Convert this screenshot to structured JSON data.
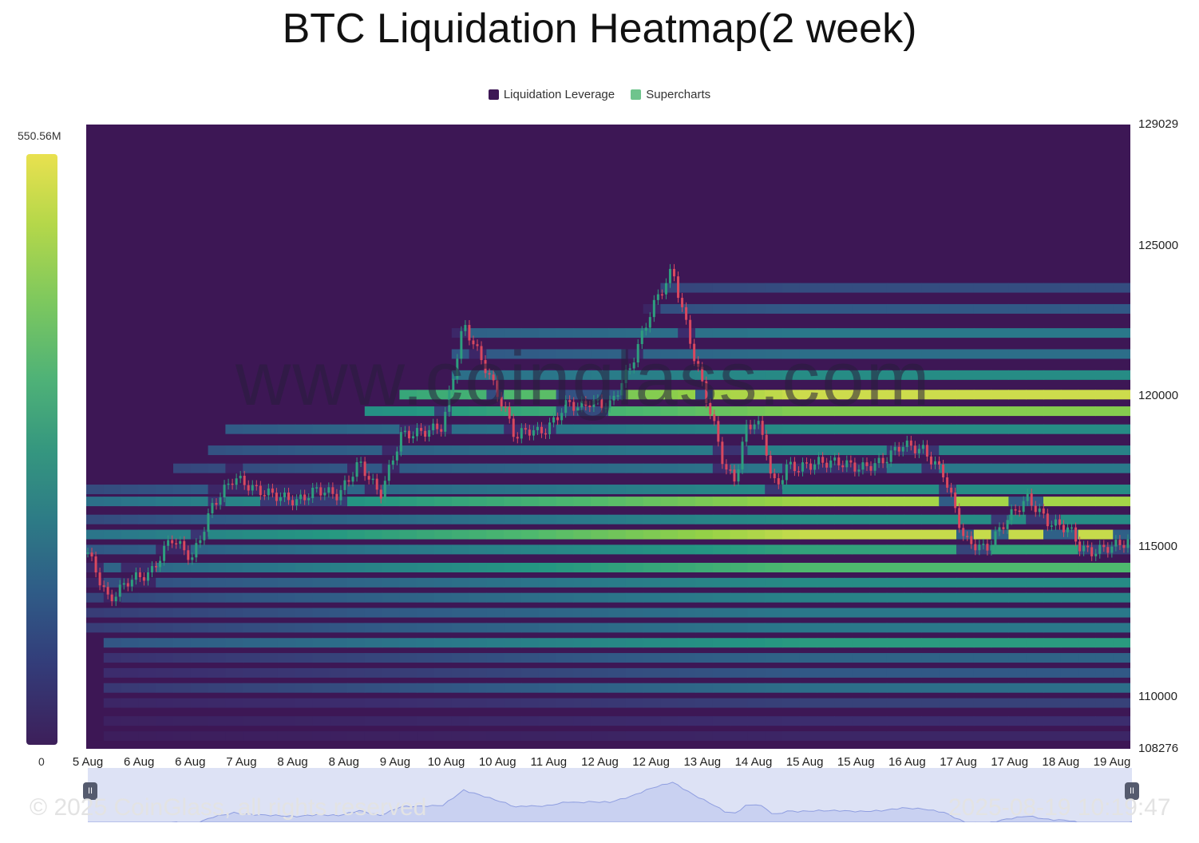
{
  "title": "BTC Liquidation Heatmap(2 week)",
  "legend": [
    {
      "label": "Liquidation Leverage",
      "color": "#3d1755"
    },
    {
      "label": "Supercharts",
      "color": "#6fc48d"
    }
  ],
  "colorbar": {
    "max_label": "550.56M",
    "min_label": "0"
  },
  "watermark": "www.coinglass.com",
  "copyright": "© 2025 CoinGlass, all rights reserved",
  "timestamp": "2025-08-19 10:19:47",
  "navigator": {
    "left_handle": "II",
    "right_handle": "II"
  },
  "chart_data": {
    "type": "heatmap",
    "title": "BTC Liquidation Heatmap(2 week)",
    "x_tick_labels": [
      "5 Aug",
      "6 Aug",
      "6 Aug",
      "7 Aug",
      "8 Aug",
      "8 Aug",
      "9 Aug",
      "10 Aug",
      "10 Aug",
      "11 Aug",
      "12 Aug",
      "12 Aug",
      "13 Aug",
      "14 Aug",
      "15 Aug",
      "15 Aug",
      "16 Aug",
      "17 Aug",
      "17 Aug",
      "18 Aug",
      "19 Aug"
    ],
    "y_tick_labels": [
      "129029",
      "125000",
      "120000",
      "115000",
      "110000",
      "108276"
    ],
    "ylim": [
      108276,
      129029
    ],
    "colorscale_range": [
      0,
      550560000
    ],
    "price_series": {
      "time_fraction": [
        0.0,
        0.02,
        0.04,
        0.06,
        0.08,
        0.1,
        0.12,
        0.14,
        0.16,
        0.18,
        0.2,
        0.22,
        0.24,
        0.26,
        0.28,
        0.3,
        0.32,
        0.34,
        0.36,
        0.38,
        0.4,
        0.41,
        0.42,
        0.43,
        0.44,
        0.46,
        0.47,
        0.48,
        0.5,
        0.52,
        0.54,
        0.56,
        0.58,
        0.6,
        0.61,
        0.62,
        0.63,
        0.64,
        0.645,
        0.65,
        0.655,
        0.66,
        0.67,
        0.68,
        0.7,
        0.72,
        0.74,
        0.76,
        0.78,
        0.8,
        0.82,
        0.84,
        0.86,
        0.88,
        0.9,
        0.92,
        0.94,
        0.95,
        0.96,
        0.98,
        1.0
      ],
      "price": [
        114800,
        113200,
        113900,
        114100,
        115300,
        114600,
        116400,
        117300,
        116900,
        116700,
        116500,
        116900,
        116700,
        117800,
        116700,
        118700,
        118800,
        119000,
        122400,
        121000,
        119500,
        118600,
        118900,
        118800,
        118900,
        119800,
        119600,
        119800,
        119700,
        121000,
        122900,
        124200,
        121400,
        119000,
        117600,
        117200,
        118900,
        119200,
        118800,
        118200,
        117200,
        117000,
        117700,
        117600,
        117800,
        117800,
        117600,
        117800,
        118400,
        118200,
        117400,
        115200,
        114900,
        115900,
        116600,
        115800,
        115600,
        115000,
        114800,
        115000,
        115200
      ]
    },
    "liquidation_bands": [
      {
        "price": 128500,
        "intensity": 0.06
      },
      {
        "price": 127800,
        "intensity": 0.08
      },
      {
        "price": 126800,
        "intensity": 0.1
      },
      {
        "price": 126000,
        "intensity": 0.14
      },
      {
        "price": 125200,
        "intensity": 0.16
      },
      {
        "price": 124400,
        "intensity": 0.2
      },
      {
        "price": 123600,
        "intensity": 0.26
      },
      {
        "price": 122900,
        "intensity": 0.3
      },
      {
        "price": 122100,
        "intensity": 0.45
      },
      {
        "price": 121400,
        "intensity": 0.4
      },
      {
        "price": 120700,
        "intensity": 0.55
      },
      {
        "price": 120050,
        "intensity": 0.96
      },
      {
        "price": 119500,
        "intensity": 0.85
      },
      {
        "price": 118900,
        "intensity": 0.55
      },
      {
        "price": 118200,
        "intensity": 0.5
      },
      {
        "price": 117600,
        "intensity": 0.45
      },
      {
        "price": 116900,
        "intensity": 0.55
      },
      {
        "price": 116500,
        "intensity": 0.9
      },
      {
        "price": 115900,
        "intensity": 0.55
      },
      {
        "price": 115400,
        "intensity": 0.95
      },
      {
        "price": 114900,
        "intensity": 0.65
      },
      {
        "price": 114300,
        "intensity": 0.75
      },
      {
        "price": 113800,
        "intensity": 0.55
      },
      {
        "price": 113300,
        "intensity": 0.5
      },
      {
        "price": 112800,
        "intensity": 0.45
      },
      {
        "price": 112300,
        "intensity": 0.45
      },
      {
        "price": 111800,
        "intensity": 0.62
      },
      {
        "price": 111300,
        "intensity": 0.35
      },
      {
        "price": 110800,
        "intensity": 0.3
      },
      {
        "price": 110300,
        "intensity": 0.4
      },
      {
        "price": 109800,
        "intensity": 0.22
      },
      {
        "price": 109200,
        "intensity": 0.15
      },
      {
        "price": 108700,
        "intensity": 0.1
      }
    ]
  }
}
